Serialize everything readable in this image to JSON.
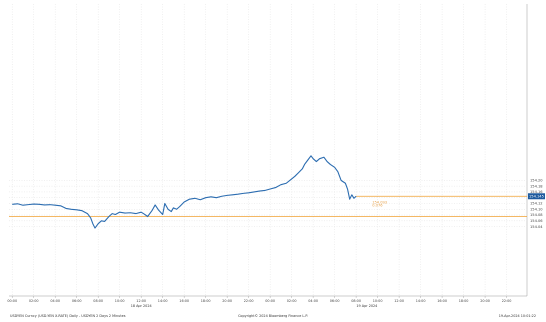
{
  "footer": {
    "left": "USDYEN Curncy (USD-YEN X-RATE) Daily - USDYEN 2 Days 2 Minutes",
    "center": "Copyright© 2024 Bloomberg Finance L.P.",
    "right": "19-Apr-2024 10:01:22"
  },
  "colors": {
    "series": "#2b6cb0",
    "reference": "#f0a030",
    "grid": "#d9d9d9",
    "last_tag": "#1f5b9e"
  },
  "chart_data": {
    "type": "line",
    "title": "",
    "xlabel": "",
    "ylabel": "",
    "ylim": [
      153.8,
      154.81
    ],
    "yticks": [
      {
        "value": 154.04,
        "label": "154.04"
      },
      {
        "value": 154.06,
        "label": "154.06"
      },
      {
        "value": 154.08,
        "label": "154.08"
      },
      {
        "value": 154.1,
        "label": "154.10"
      },
      {
        "value": 154.12,
        "label": "154.12"
      },
      {
        "value": 154.14,
        "label": "154.14"
      },
      {
        "value": 154.16,
        "label": "154.16"
      },
      {
        "value": 154.18,
        "label": "154.18"
      },
      {
        "value": 154.2,
        "label": "154.20"
      }
    ],
    "xticks": [
      {
        "t": 0,
        "label": "00:00"
      },
      {
        "t": 2,
        "label": "02:00"
      },
      {
        "t": 4,
        "label": "04:00"
      },
      {
        "t": 6,
        "label": "06:00"
      },
      {
        "t": 8,
        "label": "08:00"
      },
      {
        "t": 10,
        "label": "10:00"
      },
      {
        "t": 12,
        "label": "12:00"
      },
      {
        "t": 14,
        "label": "14:00"
      },
      {
        "t": 16,
        "label": "16:00"
      },
      {
        "t": 18,
        "label": "18:00"
      },
      {
        "t": 20,
        "label": "20:00"
      },
      {
        "t": 22,
        "label": "22:00"
      },
      {
        "t": 24,
        "label": "00:00"
      },
      {
        "t": 26,
        "label": "02:00"
      },
      {
        "t": 28,
        "label": "04:00"
      },
      {
        "t": 30,
        "label": "06:00"
      },
      {
        "t": 32,
        "label": "08:00"
      },
      {
        "t": 34,
        "label": "10:00"
      },
      {
        "t": 36,
        "label": "12:00"
      },
      {
        "t": 38,
        "label": "14:00"
      },
      {
        "t": 40,
        "label": "16:00"
      },
      {
        "t": 42,
        "label": "18:00"
      },
      {
        "t": 44,
        "label": "20:00"
      },
      {
        "t": 46,
        "label": "22:00"
      }
    ],
    "date_labels": [
      {
        "t": 12,
        "label": "18 Apr 2024"
      },
      {
        "t": 33,
        "label": "19 Apr 2024"
      }
    ],
    "x_range": [
      -0.3,
      47.9
    ],
    "reference_line": {
      "value": 154.075
    },
    "annotations": [
      {
        "t": 33.5,
        "y": 154.12,
        "text": "154.093"
      },
      {
        "t": 33.5,
        "y": 154.11,
        "text": "0.076"
      }
    ],
    "last_value": {
      "value": 154.145,
      "label": "154.145"
    },
    "series": [
      {
        "name": "USDYEN",
        "x": [
          0,
          0.5,
          1,
          1.5,
          2,
          2.5,
          3,
          3.5,
          4,
          4.5,
          5,
          5.5,
          6,
          6.5,
          7,
          7.3,
          7.5,
          7.7,
          8,
          8.3,
          8.6,
          9,
          9.3,
          9.6,
          10,
          10.5,
          11,
          11.5,
          12,
          12.3,
          12.6,
          13,
          13.3,
          13.6,
          14,
          14.2,
          14.5,
          14.8,
          15,
          15.3,
          15.6,
          16,
          16.5,
          17,
          17.5,
          18,
          18.5,
          19,
          19.5,
          20,
          20.5,
          21,
          21.5,
          22,
          22.5,
          23,
          23.5,
          24,
          24.5,
          25,
          25.5,
          26,
          26.3,
          26.6,
          27,
          27.2,
          27.5,
          27.8,
          28,
          28.3,
          28.6,
          29,
          29.3,
          29.6,
          30,
          30.3,
          30.6,
          31,
          31.2,
          31.4,
          31.6,
          31.8,
          32
        ],
        "y": [
          154.117,
          154.119,
          154.114,
          154.116,
          154.118,
          154.117,
          154.115,
          154.116,
          154.114,
          154.112,
          154.103,
          154.1,
          154.098,
          154.095,
          154.085,
          154.07,
          154.05,
          154.035,
          154.05,
          154.06,
          154.058,
          154.075,
          154.085,
          154.082,
          154.09,
          154.087,
          154.088,
          154.085,
          154.09,
          154.083,
          154.075,
          154.095,
          154.115,
          154.098,
          154.082,
          154.12,
          154.1,
          154.092,
          154.105,
          154.1,
          154.11,
          154.125,
          154.135,
          154.138,
          154.133,
          154.14,
          154.143,
          154.14,
          154.145,
          154.148,
          154.15,
          154.152,
          154.155,
          154.157,
          154.16,
          154.163,
          154.165,
          154.17,
          154.175,
          154.185,
          154.19,
          154.205,
          154.214,
          154.225,
          154.24,
          154.255,
          154.27,
          154.285,
          154.275,
          154.265,
          154.275,
          154.28,
          154.265,
          154.255,
          154.245,
          154.23,
          154.2,
          154.19,
          154.17,
          154.135,
          154.15,
          154.138,
          154.145
        ]
      }
    ]
  }
}
